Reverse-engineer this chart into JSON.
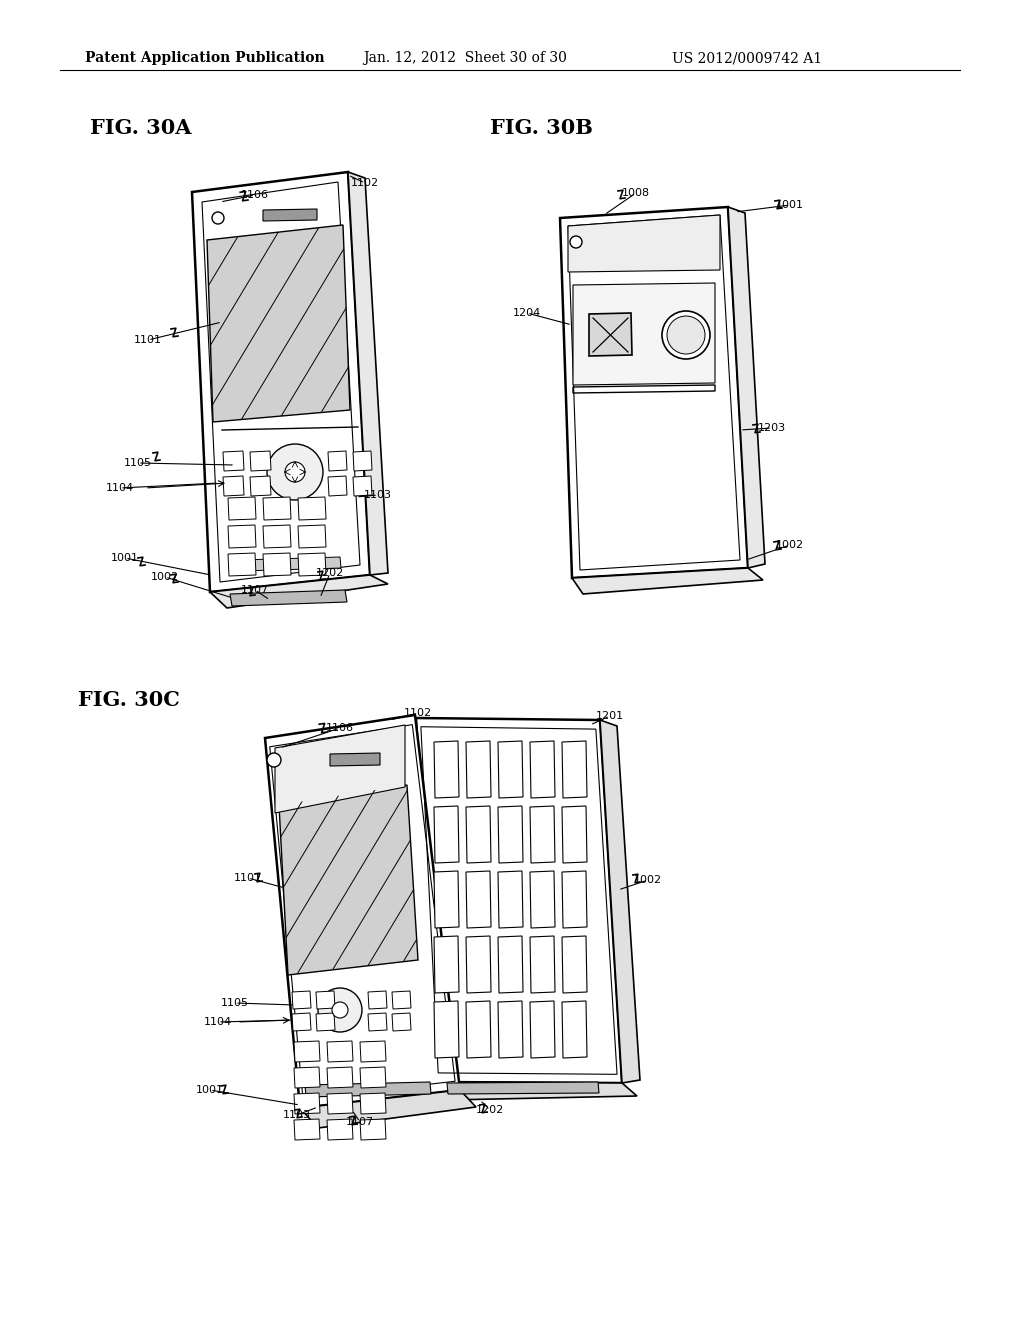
{
  "title_header": "Patent Application Publication",
  "date_header": "Jan. 12, 2012  Sheet 30 of 30",
  "patent_header": "US 2012/0009742 A1",
  "fig30A_title": "FIG. 30A",
  "fig30B_title": "FIG. 30B",
  "fig30C_title": "FIG. 30C",
  "bg_color": "#ffffff",
  "line_color": "#000000",
  "font_size_header": 10,
  "font_size_fig": 15,
  "font_size_label": 9
}
